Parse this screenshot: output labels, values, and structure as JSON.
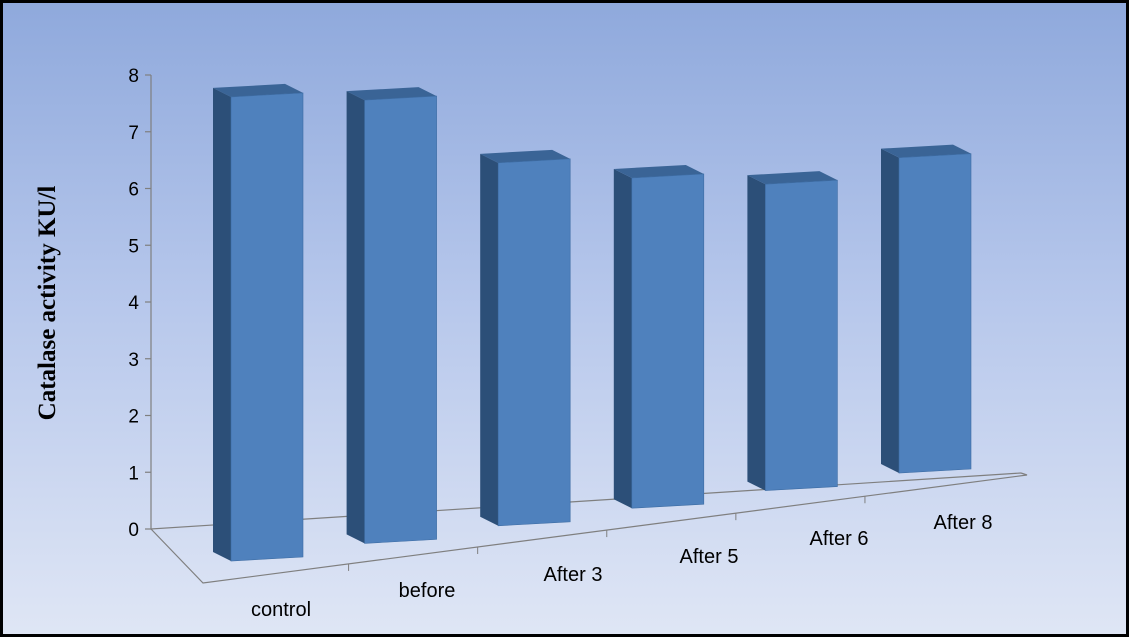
{
  "chart_data": {
    "type": "bar",
    "categories": [
      "control",
      "before",
      "After 3",
      "After 5",
      "After 6",
      "After 8"
    ],
    "values": [
      7.8,
      7.45,
      6.1,
      5.55,
      5.15,
      5.3
    ],
    "title": "",
    "xlabel": "",
    "ylabel": "Catalase activity KU/l",
    "ylim": [
      0,
      8
    ],
    "yticks": [
      0,
      1,
      2,
      3,
      4,
      5,
      6,
      7,
      8
    ],
    "grid": false,
    "legend": false,
    "style": "3d-column"
  },
  "colors": {
    "bar_front": "#4f81bd",
    "bar_side": "#2c4f78",
    "bar_top": "#3a6496",
    "background_top": "#8fa9dc",
    "background_bottom": "#dfe6f5",
    "axis": "#7f7f7f"
  }
}
